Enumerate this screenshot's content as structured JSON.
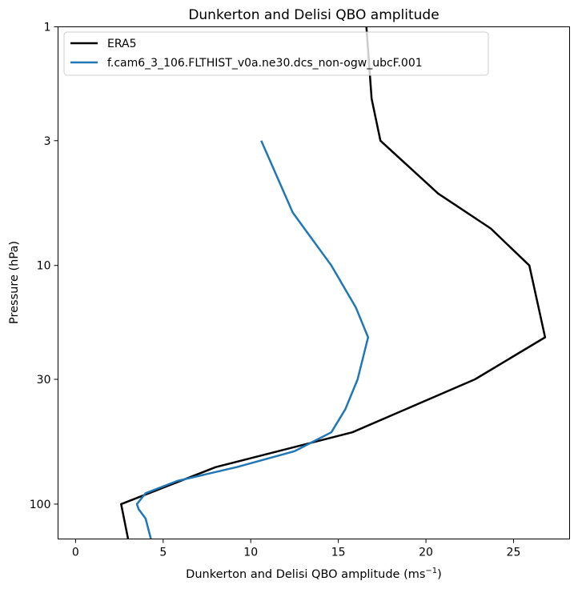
{
  "chart_data": {
    "type": "line",
    "title": "Dunkerton and Delisi QBO amplitude",
    "xlabel_main": "Dunkerton and Delisi QBO amplitude (ms",
    "xlabel_sup": "−1",
    "xlabel_close": ")",
    "ylabel": "Pressure (hPa)",
    "xlim": [
      -1,
      28.2
    ],
    "ylim": [
      140,
      1
    ],
    "y_scale": "log",
    "x_ticks": [
      0,
      5,
      10,
      15,
      20,
      25
    ],
    "y_ticks": [
      1,
      3,
      10,
      30,
      100
    ],
    "legend_position": "upper-left",
    "series": [
      {
        "name": "ERA5",
        "color": "#000000",
        "points": [
          [
            3.0,
            140
          ],
          [
            2.6,
            100
          ],
          [
            8.0,
            70
          ],
          [
            15.8,
            50
          ],
          [
            22.8,
            30
          ],
          [
            26.8,
            20
          ],
          [
            25.9,
            10
          ],
          [
            23.7,
            7
          ],
          [
            20.7,
            5
          ],
          [
            17.4,
            3
          ],
          [
            16.9,
            2
          ],
          [
            16.6,
            1
          ]
        ]
      },
      {
        "name": "f.cam6_3_106.FLTHIST_v0a.ne30.dcs_non-ogw_ubcF.001",
        "color": "#1f77b4",
        "points": [
          [
            4.3,
            140
          ],
          [
            4.0,
            115
          ],
          [
            3.6,
            105
          ],
          [
            3.5,
            100
          ],
          [
            4.0,
            90
          ],
          [
            5.8,
            80
          ],
          [
            9.2,
            70
          ],
          [
            12.5,
            60
          ],
          [
            14.6,
            50
          ],
          [
            15.4,
            40
          ],
          [
            16.1,
            30
          ],
          [
            16.7,
            20
          ],
          [
            16.0,
            15
          ],
          [
            14.6,
            10
          ],
          [
            12.4,
            6
          ],
          [
            10.6,
            3
          ]
        ]
      }
    ]
  }
}
